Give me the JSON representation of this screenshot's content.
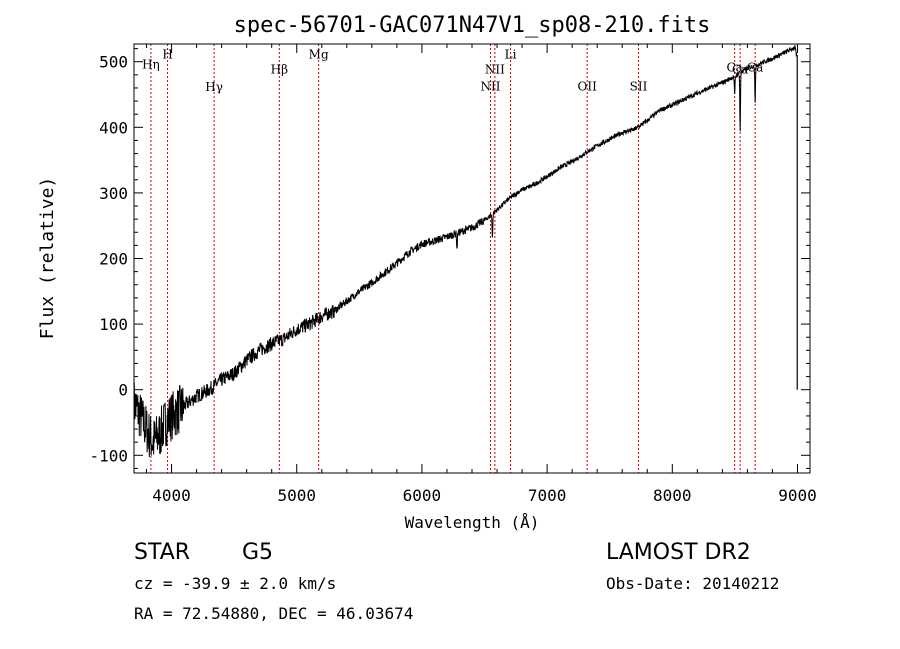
{
  "chart_data": {
    "type": "line",
    "title": "spec-56701-GAC071N47V1_sp08-210.fits",
    "xlabel": "Wavelength (Å)",
    "ylabel": "Flux (relative)",
    "xlim": [
      3700,
      9100
    ],
    "ylim": [
      -127,
      527
    ],
    "xticks": [
      4000,
      5000,
      6000,
      7000,
      8000,
      9000
    ],
    "yticks": [
      -100,
      0,
      100,
      200,
      300,
      400,
      500
    ],
    "grid": false,
    "line_color": "#000000",
    "marker_color": "#cc0000",
    "anchors": {
      "x": [
        3700,
        3750,
        3800,
        3850,
        3900,
        3950,
        4000,
        4100,
        4200,
        4300,
        4400,
        4500,
        4600,
        4700,
        4800,
        4900,
        5000,
        5100,
        5200,
        5300,
        5400,
        5500,
        5600,
        5700,
        5800,
        5900,
        6000,
        6100,
        6200,
        6300,
        6400,
        6500,
        6600,
        6700,
        6800,
        6900,
        7000,
        7100,
        7200,
        7300,
        7400,
        7500,
        7600,
        7700,
        7800,
        7900,
        8000,
        8100,
        8200,
        8300,
        8400,
        8500,
        8600,
        8700,
        8800,
        8900,
        8980,
        9000
      ],
      "y": [
        -20,
        -40,
        -60,
        -80,
        -70,
        -50,
        -40,
        -25,
        -10,
        0,
        15,
        25,
        45,
        60,
        70,
        78,
        92,
        100,
        112,
        120,
        135,
        150,
        163,
        178,
        193,
        210,
        222,
        227,
        233,
        240,
        247,
        258,
        274,
        292,
        305,
        313,
        325,
        338,
        348,
        360,
        372,
        382,
        392,
        397,
        410,
        426,
        434,
        443,
        452,
        460,
        468,
        478,
        490,
        497,
        505,
        514,
        522,
        500
      ]
    },
    "absorption_dips": [
      {
        "x": 6280,
        "depth": 25
      },
      {
        "x": 6563,
        "depth": 35
      },
      {
        "x": 8498,
        "depth": 30
      },
      {
        "x": 8542,
        "depth": 90
      },
      {
        "x": 8662,
        "depth": 55
      }
    ],
    "line_markers": [
      {
        "label": "Hη",
        "x": 3835,
        "label_y": 490
      },
      {
        "label": "H",
        "x": 3968,
        "label_y": 505
      },
      {
        "label": "Hγ",
        "x": 4340,
        "label_y": 455
      },
      {
        "label": "Hβ",
        "x": 4861,
        "label_y": 482
      },
      {
        "label": "Mg",
        "x": 5175,
        "label_y": 505
      },
      {
        "label": "NII",
        "x": 6548,
        "label_y": 456
      },
      {
        "label": "NII",
        "x": 6583,
        "label_y": 482
      },
      {
        "label": "Li",
        "x": 6708,
        "label_y": 505
      },
      {
        "label": "OII",
        "x": 7320,
        "label_y": 456
      },
      {
        "label": "SII",
        "x": 7730,
        "label_y": 456
      },
      {
        "label": "Ca",
        "x": 8498,
        "label_y": 485
      },
      {
        "label": "Ca",
        "x": 8542,
        "label_y": 482
      },
      {
        "label": "Ca",
        "x": 8662,
        "label_y": 485
      }
    ]
  },
  "info": {
    "object_type": "STAR",
    "subclass": "G5",
    "survey": "LAMOST DR2",
    "redshift": "cz = -39.9 ± 2.0 km/s",
    "obs_date": "Obs-Date: 20140212",
    "coords": "RA =  72.54880, DEC =  46.03674"
  }
}
